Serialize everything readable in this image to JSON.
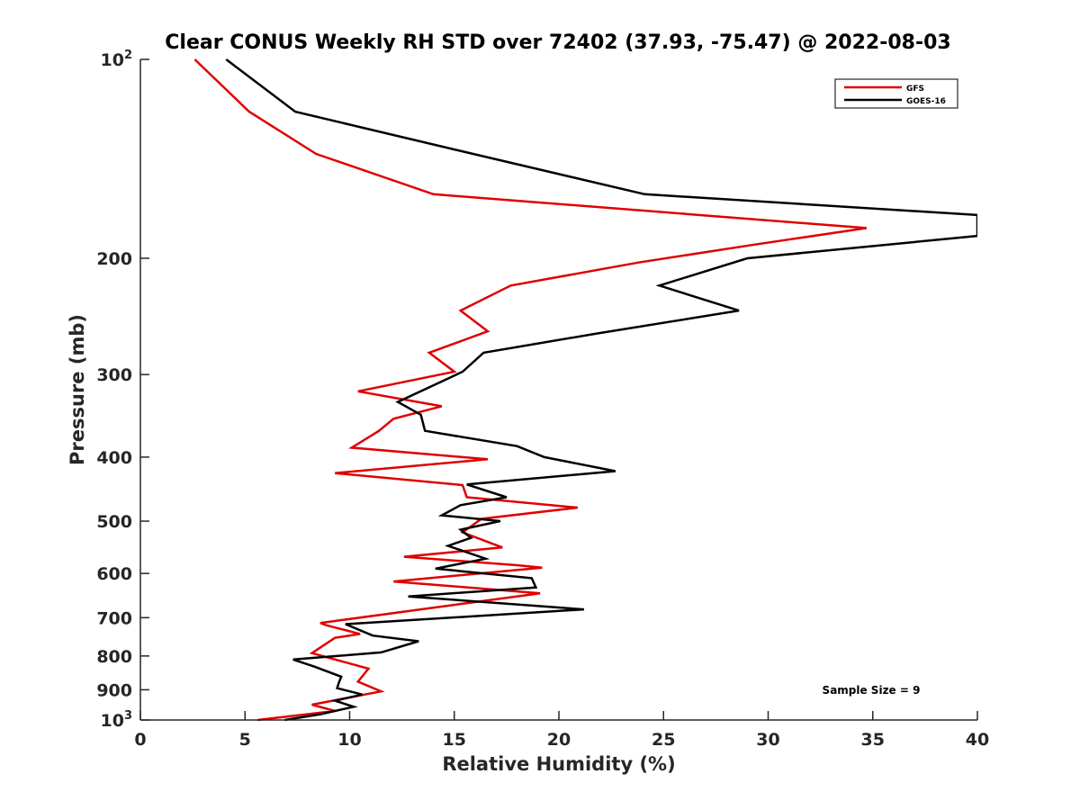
{
  "chart_data": {
    "type": "line",
    "title": "Clear CONUS Weekly RH STD over 72402 (37.93, -75.47) @ 2022-08-03",
    "xlabel": "Relative Humidity (%)",
    "ylabel": "Pressure (mb)",
    "xlim": [
      0,
      40
    ],
    "ylim": [
      100,
      1000
    ],
    "yscale": "log",
    "yreversed": true,
    "grid": false,
    "x_ticks": [
      "0",
      "5",
      "10",
      "15",
      "20",
      "25",
      "30",
      "35",
      "40"
    ],
    "x_tick_values": [
      0,
      5,
      10,
      15,
      20,
      25,
      30,
      35,
      40
    ],
    "y_ticks": [
      {
        "value": 100,
        "base": "10",
        "exp": "2"
      },
      {
        "value": 200,
        "label": "200"
      },
      {
        "value": 300,
        "label": "300"
      },
      {
        "value": 400,
        "label": "400"
      },
      {
        "value": 500,
        "label": "500"
      },
      {
        "value": 600,
        "label": "600"
      },
      {
        "value": 700,
        "label": "700"
      },
      {
        "value": 800,
        "label": "800"
      },
      {
        "value": 900,
        "label": "900"
      },
      {
        "value": 1000,
        "base": "10",
        "exp": "3"
      }
    ],
    "legend": {
      "placement": "top-right"
    },
    "annotation": "Sample Size = 9",
    "series": [
      {
        "name": "GFS",
        "color": "#e00000",
        "points": [
          [
            2.6,
            100
          ],
          [
            5.2,
            120
          ],
          [
            8.4,
            139
          ],
          [
            14.0,
            160
          ],
          [
            34.7,
            180
          ],
          [
            29.2,
            191
          ],
          [
            23.8,
            203
          ],
          [
            17.7,
            220
          ],
          [
            15.3,
            240
          ],
          [
            16.6,
            258
          ],
          [
            13.8,
            278
          ],
          [
            15.0,
            297
          ],
          [
            10.4,
            318
          ],
          [
            14.4,
            335
          ],
          [
            12.1,
            350
          ],
          [
            11.4,
            365
          ],
          [
            10.1,
            387
          ],
          [
            16.6,
            403
          ],
          [
            9.3,
            423
          ],
          [
            15.4,
            441
          ],
          [
            15.6,
            460
          ],
          [
            20.9,
            477
          ],
          [
            16.3,
            496
          ],
          [
            15.4,
            520
          ],
          [
            17.3,
            548
          ],
          [
            12.6,
            566
          ],
          [
            18.0,
            583
          ],
          [
            19.2,
            588
          ],
          [
            12.1,
            617
          ],
          [
            19.1,
            643
          ],
          [
            8.6,
            713
          ],
          [
            8.9,
            719
          ],
          [
            10.5,
            741
          ],
          [
            9.3,
            751
          ],
          [
            8.2,
            792
          ],
          [
            10.9,
            836
          ],
          [
            10.4,
            875
          ],
          [
            11.5,
            905
          ],
          [
            8.2,
            948
          ],
          [
            9.3,
            969
          ],
          [
            5.6,
            1000
          ]
        ]
      },
      {
        "name": "GOES-16",
        "color": "#000000",
        "points": [
          [
            4.1,
            100
          ],
          [
            7.4,
            120
          ],
          [
            15.9,
            139
          ],
          [
            24.1,
            160
          ],
          [
            40.0,
            172
          ],
          [
            40.0,
            185
          ],
          [
            29.0,
            200
          ],
          [
            24.8,
            220
          ],
          [
            28.6,
            240
          ],
          [
            21.8,
            260
          ],
          [
            16.4,
            278
          ],
          [
            15.4,
            297
          ],
          [
            12.3,
            330
          ],
          [
            13.4,
            345
          ],
          [
            13.6,
            365
          ],
          [
            18.0,
            385
          ],
          [
            19.3,
            400
          ],
          [
            22.7,
            420
          ],
          [
            15.6,
            440
          ],
          [
            17.5,
            460
          ],
          [
            15.3,
            473
          ],
          [
            14.4,
            490
          ],
          [
            17.2,
            500
          ],
          [
            15.3,
            515
          ],
          [
            15.8,
            530
          ],
          [
            14.7,
            545
          ],
          [
            16.5,
            570
          ],
          [
            14.1,
            590
          ],
          [
            18.7,
            610
          ],
          [
            18.9,
            630
          ],
          [
            12.8,
            650
          ],
          [
            21.2,
            680
          ],
          [
            9.8,
            716
          ],
          [
            11.1,
            745
          ],
          [
            13.3,
            760
          ],
          [
            11.5,
            790
          ],
          [
            7.3,
            810
          ],
          [
            8.3,
            830
          ],
          [
            9.6,
            860
          ],
          [
            9.5,
            875
          ],
          [
            9.4,
            895
          ],
          [
            10.6,
            915
          ],
          [
            9.3,
            935
          ],
          [
            10.2,
            955
          ],
          [
            8.6,
            980
          ],
          [
            6.9,
            1000
          ]
        ]
      }
    ]
  }
}
